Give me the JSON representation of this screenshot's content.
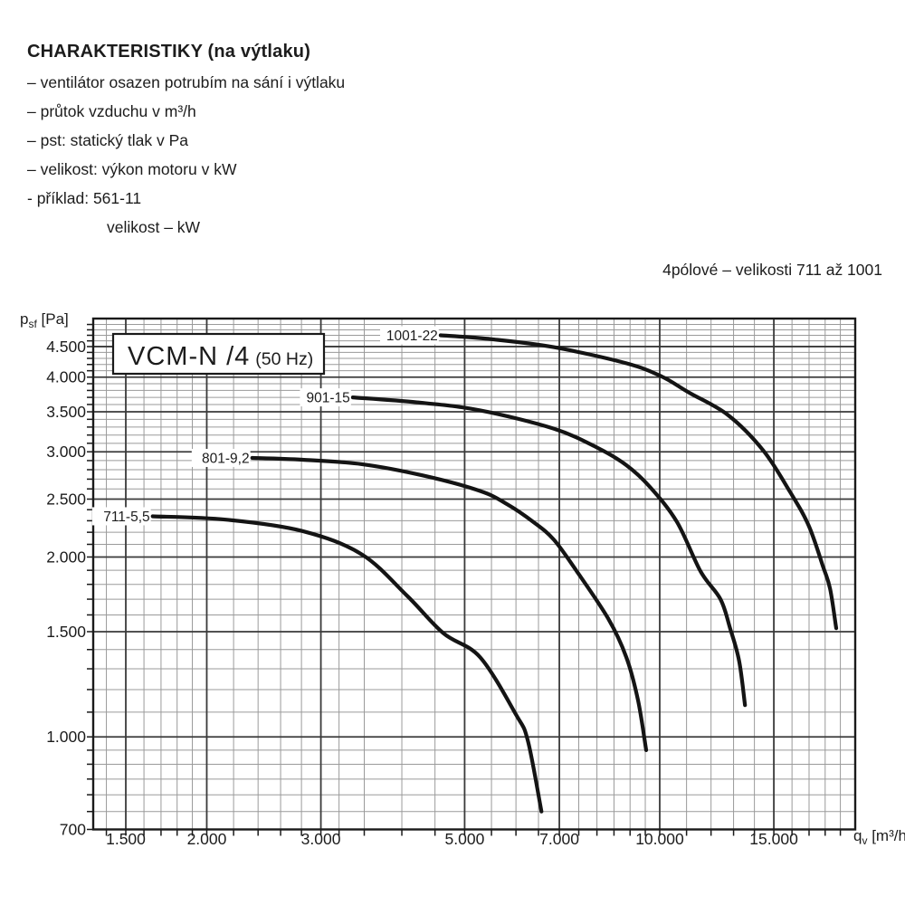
{
  "header": {
    "title": "CHARAKTERISTIKY (na výtlaku)",
    "lines": [
      "– ventilátor osazen potrubím na sání i výtlaku",
      "– průtok vzduchu v m³/h",
      "– pst: statický tlak v Pa",
      "– velikost: výkon motoru v kW",
      "- příklad: 561-11",
      "velikost – kW"
    ]
  },
  "note": "4pólové – velikosti 711 až 1001",
  "chart_data": {
    "type": "line",
    "scale": "log-log",
    "grid": "on",
    "title_box": {
      "model": "VCM-N /4",
      "frequency": "(50 Hz)"
    },
    "x_axis": {
      "label": "qv [m³/h]",
      "label_main": "q",
      "label_sub": "v",
      "label_unit": " [m³/h]",
      "range": [
        1336,
        20030
      ],
      "major_ticks": [
        1500,
        2000,
        3000,
        5000,
        7000,
        10000,
        15000
      ],
      "major_tick_labels": [
        "1.500",
        "2.000",
        "3.000",
        "5.000",
        "7.000",
        "10.000",
        "15.000"
      ],
      "minor_ticks": [
        1400,
        1600,
        1700,
        1800,
        1900,
        2200,
        2400,
        2600,
        2800,
        3200,
        3500,
        4000,
        4500,
        5500,
        6000,
        6500,
        7500,
        8000,
        8500,
        9000,
        9500,
        11000,
        12000,
        13000,
        14000,
        16000,
        17000,
        18000,
        19000
      ]
    },
    "y_axis": {
      "label": "psf [Pa]",
      "label_main": "p",
      "label_sub": "sf",
      "label_unit": " [Pa]",
      "range": [
        700,
        5013
      ],
      "major_ticks": [
        700,
        1000,
        1500,
        2000,
        2500,
        3000,
        3500,
        4000,
        4500
      ],
      "major_tick_labels": [
        "700",
        "1.000",
        "1.500",
        "2.000",
        "2.500",
        "3.000",
        "3.500",
        "4.000",
        "4.500"
      ],
      "minor_ticks": [
        750,
        800,
        850,
        900,
        950,
        1100,
        1200,
        1300,
        1400,
        1600,
        1700,
        1800,
        1900,
        2100,
        2200,
        2300,
        2400,
        2600,
        2700,
        2800,
        2900,
        3100,
        3200,
        3300,
        3400,
        3600,
        3700,
        3800,
        3900,
        4100,
        4200,
        4300,
        4400,
        4600,
        4700,
        4800,
        4900
      ]
    },
    "series": [
      {
        "name": "711-5,5",
        "points": [
          [
            1650,
            2340
          ],
          [
            2140,
            2310
          ],
          [
            2810,
            2210
          ],
          [
            3470,
            2020
          ],
          [
            4080,
            1720
          ],
          [
            4640,
            1490
          ],
          [
            5280,
            1360
          ],
          [
            6000,
            1090
          ],
          [
            6260,
            985
          ],
          [
            6570,
            750
          ]
        ]
      },
      {
        "name": "801-9,2",
        "points": [
          [
            2350,
            2930
          ],
          [
            2810,
            2910
          ],
          [
            3470,
            2860
          ],
          [
            4300,
            2740
          ],
          [
            5280,
            2580
          ],
          [
            5820,
            2450
          ],
          [
            6380,
            2290
          ],
          [
            6860,
            2140
          ],
          [
            7430,
            1900
          ],
          [
            8320,
            1580
          ],
          [
            8880,
            1360
          ],
          [
            9260,
            1150
          ],
          [
            9530,
            950
          ]
        ]
      },
      {
        "name": "901-15",
        "points": [
          [
            3360,
            3700
          ],
          [
            4220,
            3630
          ],
          [
            5280,
            3520
          ],
          [
            6860,
            3280
          ],
          [
            8000,
            3050
          ],
          [
            8880,
            2850
          ],
          [
            9660,
            2620
          ],
          [
            10630,
            2290
          ],
          [
            11570,
            1890
          ],
          [
            12410,
            1700
          ],
          [
            12840,
            1520
          ],
          [
            13260,
            1340
          ],
          [
            13540,
            1130
          ]
        ]
      },
      {
        "name": "1001-22",
        "points": [
          [
            4590,
            4700
          ],
          [
            5500,
            4630
          ],
          [
            6860,
            4490
          ],
          [
            8880,
            4220
          ],
          [
            10070,
            4010
          ],
          [
            11090,
            3770
          ],
          [
            12730,
            3460
          ],
          [
            14430,
            3020
          ],
          [
            15890,
            2570
          ],
          [
            16970,
            2260
          ],
          [
            17860,
            1930
          ],
          [
            18320,
            1770
          ],
          [
            18720,
            1520
          ]
        ]
      }
    ],
    "colors": {
      "curve": "#141414",
      "major_grid": "#3a3a3a",
      "minor_grid": "#9a9a9a",
      "border": "#1a1a1a"
    }
  }
}
